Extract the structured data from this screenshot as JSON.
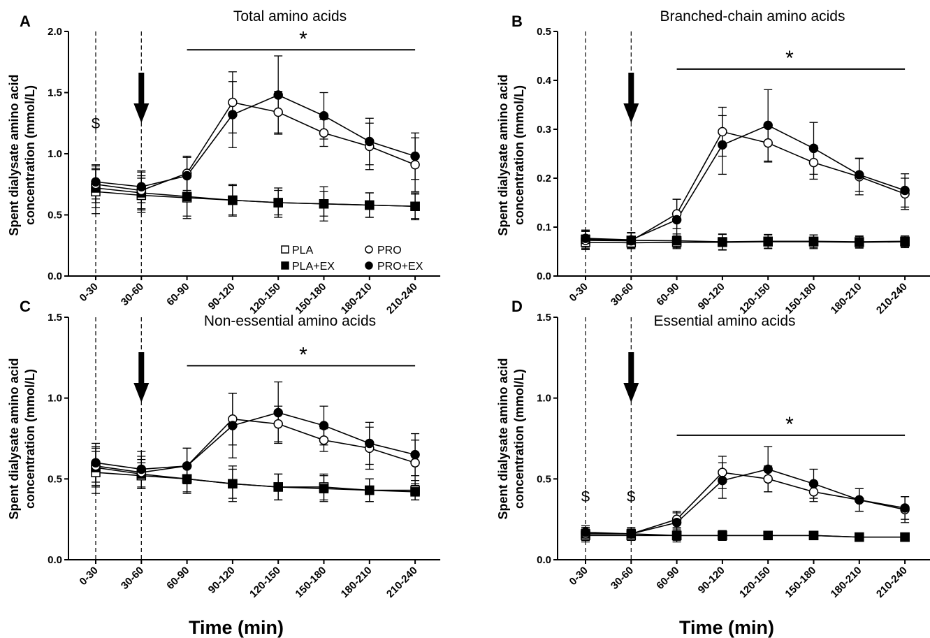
{
  "colors": {
    "ink": "#000000",
    "background": "#ffffff",
    "open_marker_fill": "#ffffff"
  },
  "legend": {
    "entries": [
      {
        "label": "PLA",
        "marker": "open-square"
      },
      {
        "label": "PRO",
        "marker": "open-circle"
      },
      {
        "label": "PLA+EX",
        "marker": "filled-square"
      },
      {
        "label": "PRO+EX",
        "marker": "filled-circle"
      }
    ]
  },
  "chart_data": [
    {
      "panel": "A",
      "type": "line",
      "title": "Total amino acids",
      "ylabel_line1": "Spent dialysate amino acid",
      "ylabel_line2": "concentration (mmol/L)",
      "xlabel": "",
      "categories": [
        "0-30",
        "30-60",
        "60-90",
        "90-120",
        "120-150",
        "150-180",
        "180-210",
        "210-240"
      ],
      "yticks": [
        "0.0",
        "0.5",
        "1.0",
        "1.5",
        "2.0"
      ],
      "ylim": [
        0,
        2.0
      ],
      "legend_shown": true,
      "dollar_markers": [
        "0-30"
      ],
      "arrow_at": "30-60",
      "significance": {
        "symbol": "*",
        "from": "60-90",
        "to": "210-240",
        "y": 1.85
      },
      "series": [
        {
          "name": "PLA",
          "marker": "open-square",
          "values": [
            0.69,
            0.66,
            0.64,
            0.62,
            0.6,
            0.59,
            0.58,
            0.57
          ],
          "err": [
            0.18,
            0.14,
            0.17,
            0.13,
            0.12,
            0.14,
            0.1,
            0.11
          ]
        },
        {
          "name": "PLA+EX",
          "marker": "filled-square",
          "values": [
            0.72,
            0.68,
            0.65,
            0.62,
            0.6,
            0.59,
            0.58,
            0.57
          ],
          "err": [
            0.16,
            0.14,
            0.16,
            0.12,
            0.1,
            0.1,
            0.1,
            0.1
          ]
        },
        {
          "name": "PRO",
          "marker": "open-circle",
          "values": [
            0.75,
            0.7,
            0.84,
            1.42,
            1.34,
            1.17,
            1.06,
            0.91
          ],
          "err": [
            0.15,
            0.15,
            0.14,
            0.25,
            0.17,
            0.11,
            0.19,
            0.22
          ]
        },
        {
          "name": "PRO+EX",
          "marker": "filled-circle",
          "values": [
            0.77,
            0.73,
            0.82,
            1.32,
            1.48,
            1.31,
            1.1,
            0.98
          ],
          "err": [
            0.14,
            0.13,
            0.15,
            0.27,
            0.32,
            0.19,
            0.19,
            0.19
          ]
        }
      ]
    },
    {
      "panel": "B",
      "type": "line",
      "title": "Branched-chain amino acids",
      "ylabel_line1": "Spent dialysate amino acid",
      "ylabel_line2": "concentration (mmol/L)",
      "xlabel": "",
      "categories": [
        "0-30",
        "30-60",
        "60-90",
        "90-120",
        "120-150",
        "150-180",
        "180-210",
        "210-240"
      ],
      "yticks": [
        "0.0",
        "0.1",
        "0.2",
        "0.3",
        "0.4",
        "0.5"
      ],
      "ylim": [
        0,
        0.5
      ],
      "legend_shown": false,
      "dollar_markers": [],
      "arrow_at": "30-60",
      "significance": {
        "symbol": "*",
        "from": "60-90",
        "to": "210-240",
        "y": 0.423
      },
      "series": [
        {
          "name": "PLA",
          "marker": "open-square",
          "values": [
            0.069,
            0.068,
            0.069,
            0.069,
            0.07,
            0.07,
            0.069,
            0.07
          ],
          "err": [
            0.015,
            0.012,
            0.013,
            0.016,
            0.014,
            0.014,
            0.012,
            0.012
          ]
        },
        {
          "name": "PLA+EX",
          "marker": "filled-square",
          "values": [
            0.075,
            0.073,
            0.072,
            0.07,
            0.071,
            0.071,
            0.07,
            0.071
          ],
          "err": [
            0.018,
            0.015,
            0.014,
            0.016,
            0.014,
            0.013,
            0.012,
            0.011
          ]
        },
        {
          "name": "PRO",
          "marker": "open-circle",
          "values": [
            0.073,
            0.072,
            0.127,
            0.295,
            0.272,
            0.232,
            0.203,
            0.168
          ],
          "err": [
            0.018,
            0.016,
            0.03,
            0.05,
            0.039,
            0.034,
            0.037,
            0.032
          ]
        },
        {
          "name": "PRO+EX",
          "marker": "filled-circle",
          "values": [
            0.077,
            0.074,
            0.115,
            0.268,
            0.308,
            0.261,
            0.207,
            0.175
          ],
          "err": [
            0.017,
            0.015,
            0.042,
            0.06,
            0.073,
            0.053,
            0.034,
            0.034
          ]
        }
      ]
    },
    {
      "panel": "C",
      "type": "line",
      "title": "Non-essential amino acids",
      "ylabel_line1": "Spent dialysate amino acid",
      "ylabel_line2": "concentration (mmol/L)",
      "xlabel": "Time (min)",
      "categories": [
        "0-30",
        "30-60",
        "60-90",
        "90-120",
        "120-150",
        "150-180",
        "180-210",
        "210-240"
      ],
      "yticks": [
        "0.0",
        "0.5",
        "1.0",
        "1.5"
      ],
      "ylim": [
        0,
        1.5
      ],
      "legend_shown": false,
      "dollar_markers": [],
      "arrow_at": "30-60",
      "significance": {
        "symbol": "*",
        "from": "60-90",
        "to": "210-240",
        "y": 1.2
      },
      "series": [
        {
          "name": "PLA",
          "marker": "open-square",
          "values": [
            0.54,
            0.52,
            0.5,
            0.47,
            0.45,
            0.45,
            0.43,
            0.43
          ],
          "err": [
            0.13,
            0.08,
            0.09,
            0.11,
            0.08,
            0.08,
            0.07,
            0.06
          ]
        },
        {
          "name": "PLA+EX",
          "marker": "filled-square",
          "values": [
            0.57,
            0.53,
            0.5,
            0.47,
            0.45,
            0.44,
            0.43,
            0.42
          ],
          "err": [
            0.12,
            0.09,
            0.08,
            0.09,
            0.08,
            0.08,
            0.07,
            0.05
          ]
        },
        {
          "name": "PRO",
          "marker": "open-circle",
          "values": [
            0.58,
            0.54,
            0.58,
            0.87,
            0.84,
            0.74,
            0.69,
            0.6
          ],
          "err": [
            0.12,
            0.1,
            0.11,
            0.16,
            0.11,
            0.07,
            0.13,
            0.14
          ]
        },
        {
          "name": "PRO+EX",
          "marker": "filled-circle",
          "values": [
            0.6,
            0.56,
            0.58,
            0.83,
            0.91,
            0.83,
            0.72,
            0.65
          ],
          "err": [
            0.12,
            0.11,
            0.11,
            0.2,
            0.19,
            0.12,
            0.13,
            0.13
          ]
        }
      ]
    },
    {
      "panel": "D",
      "type": "line",
      "title": "Essential amino acids",
      "ylabel_line1": "Spent dialysate amino acid",
      "ylabel_line2": "concentration (mmol/L)",
      "xlabel": "Time (min)",
      "categories": [
        "0-30",
        "30-60",
        "60-90",
        "90-120",
        "120-150",
        "150-180",
        "180-210",
        "210-240"
      ],
      "yticks": [
        "0.0",
        "0.5",
        "1.0",
        "1.5"
      ],
      "ylim": [
        0,
        1.5
      ],
      "legend_shown": false,
      "dollar_markers": [
        "0-30",
        "30-60"
      ],
      "arrow_at": "30-60",
      "significance": {
        "symbol": "*",
        "from": "60-90",
        "to": "210-240",
        "y": 0.77
      },
      "series": [
        {
          "name": "PLA",
          "marker": "open-square",
          "values": [
            0.15,
            0.15,
            0.15,
            0.15,
            0.15,
            0.15,
            0.14,
            0.14
          ],
          "err": [
            0.04,
            0.03,
            0.04,
            0.03,
            0.02,
            0.02,
            0.02,
            0.02
          ]
        },
        {
          "name": "PLA+EX",
          "marker": "filled-square",
          "values": [
            0.16,
            0.16,
            0.15,
            0.15,
            0.15,
            0.15,
            0.14,
            0.14
          ],
          "err": [
            0.04,
            0.04,
            0.03,
            0.03,
            0.02,
            0.02,
            0.02,
            0.02
          ]
        },
        {
          "name": "PRO",
          "marker": "open-circle",
          "values": [
            0.16,
            0.16,
            0.25,
            0.54,
            0.5,
            0.42,
            0.37,
            0.31
          ],
          "err": [
            0.04,
            0.03,
            0.05,
            0.1,
            0.08,
            0.06,
            0.07,
            0.08
          ]
        },
        {
          "name": "PRO+EX",
          "marker": "filled-circle",
          "values": [
            0.17,
            0.16,
            0.23,
            0.49,
            0.56,
            0.47,
            0.37,
            0.32
          ],
          "err": [
            0.04,
            0.03,
            0.06,
            0.11,
            0.14,
            0.09,
            0.07,
            0.07
          ]
        }
      ]
    }
  ]
}
